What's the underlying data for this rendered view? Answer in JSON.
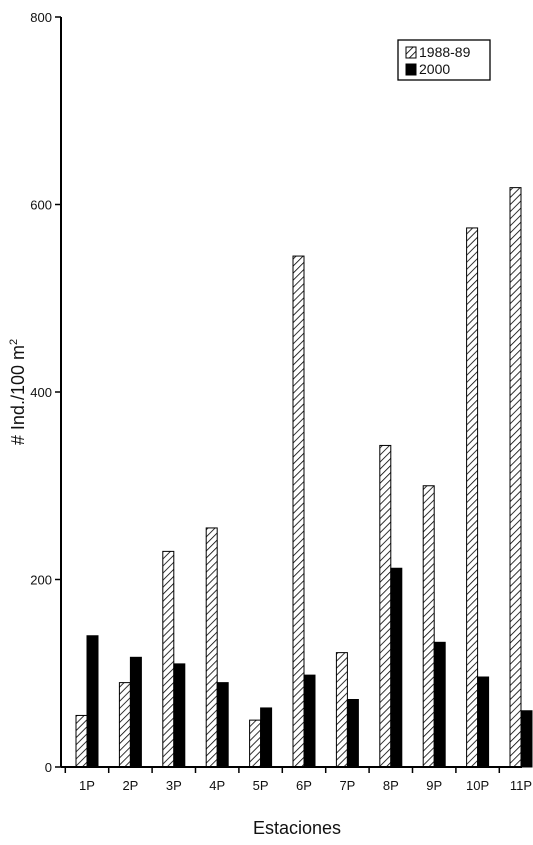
{
  "chart_data": {
    "type": "bar",
    "categories": [
      "1P",
      "2P",
      "3P",
      "4P",
      "5P",
      "6P",
      "7P",
      "8P",
      "9P",
      "10P",
      "11P"
    ],
    "series": [
      {
        "name": "1988-89",
        "pattern": "hatched",
        "values": [
          55,
          90,
          230,
          255,
          50,
          545,
          122,
          343,
          300,
          575,
          618
        ]
      },
      {
        "name": "2000",
        "pattern": "solid",
        "values": [
          140,
          117,
          110,
          90,
          63,
          98,
          72,
          212,
          133,
          96,
          60
        ]
      }
    ],
    "xlabel": "Estaciones",
    "ylabel": "# Ind./100 m",
    "ylabel_sup": "2",
    "ylim": [
      0,
      800
    ],
    "yticks": [
      0,
      200,
      400,
      600,
      800
    ],
    "grid": false,
    "legend_position": "top-right",
    "colors": {
      "bar_solid": "#000000",
      "hatch_stroke": "#000000",
      "axis": "#000000",
      "background": "#ffffff"
    }
  }
}
